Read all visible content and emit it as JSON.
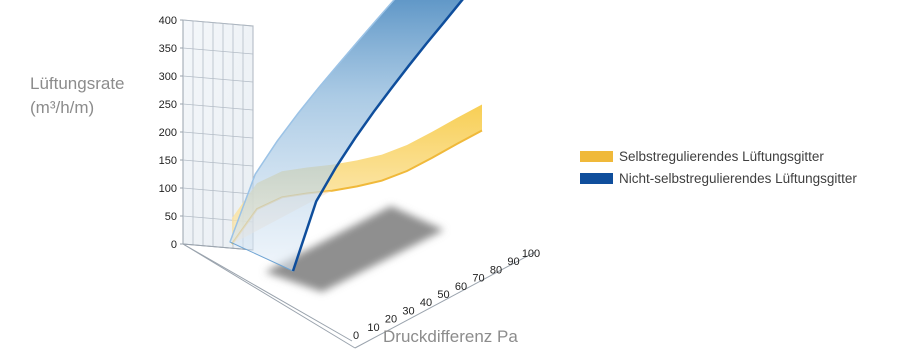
{
  "chart_data": {
    "type": "area",
    "view": "3d",
    "xlabel": "Druckdifferenz Pa",
    "ylabel_line1": "Lüftungsrate",
    "ylabel_line2": "(m³/h/m)",
    "x_ticks": [
      "0",
      "10",
      "20",
      "30",
      "40",
      "50",
      "60",
      "70",
      "80",
      "90",
      "100"
    ],
    "y_ticks": [
      "0",
      "50",
      "100",
      "150",
      "200",
      "250",
      "300",
      "350",
      "400"
    ],
    "xlim": [
      0,
      100
    ],
    "ylim": [
      0,
      400
    ],
    "grid": true,
    "legend_position": "right",
    "series": [
      {
        "name": "Selbstregulierendes Lüftungsgitter",
        "color": "#f0b93a",
        "x": [
          0,
          10,
          20,
          30,
          40,
          50,
          60,
          70,
          80,
          90,
          100
        ],
        "y": [
          0,
          60,
          78,
          80,
          78,
          76,
          74,
          76,
          82,
          88,
          92
        ]
      },
      {
        "name": "Nicht-selbstregulierendes Lüftungsgitter",
        "color": "#0f4e9c",
        "x": [
          0,
          10,
          20,
          30,
          40,
          50,
          60,
          70,
          80,
          90,
          100
        ],
        "y": [
          0,
          112,
          158,
          194,
          224,
          250,
          274,
          296,
          316,
          336,
          355
        ]
      }
    ]
  }
}
